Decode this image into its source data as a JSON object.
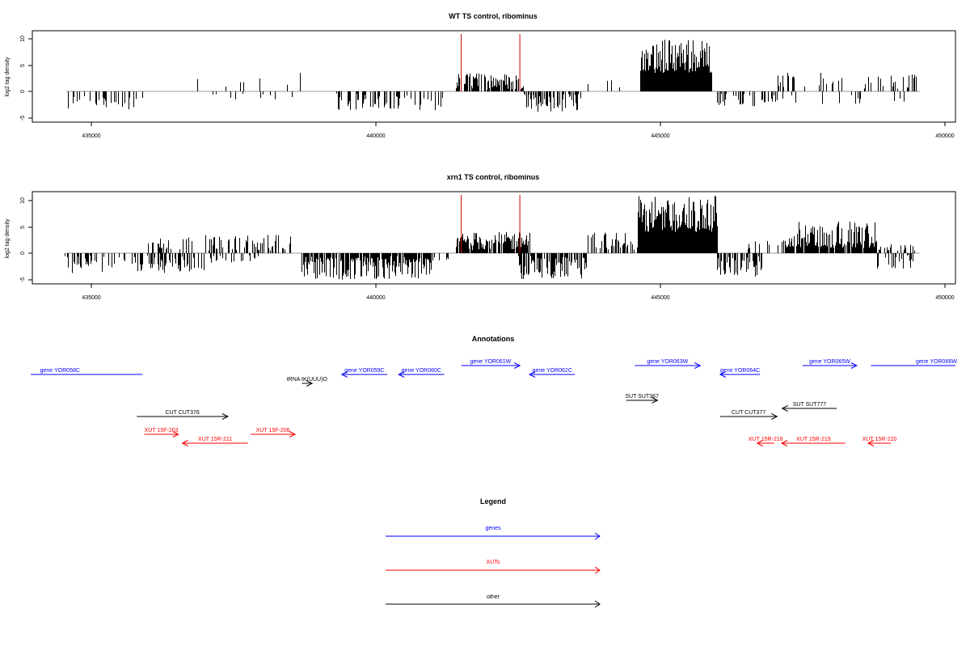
{
  "chart_data": [
    {
      "type": "bar",
      "title": "WT TS control, ribominus",
      "xlabel": "",
      "ylabel": "log2 tag density",
      "xlim": [
        434500,
        449500
      ],
      "ylim": [
        -5,
        10
      ],
      "x_ticks": [
        "435000",
        "440000",
        "445000",
        "450000"
      ],
      "y_ticks": [
        "-5",
        "0",
        "5",
        "10"
      ],
      "markers": [
        441500,
        442530
      ],
      "marker_color": "#cc0000",
      "regions": [
        {
          "x_start": 434500,
          "x_end": 436000,
          "sign": "neg",
          "min": 0.4,
          "max": 3.6,
          "density": 0.3
        },
        {
          "x_start": 436500,
          "x_end": 438800,
          "sign": "pos",
          "min": 0.5,
          "max": 3.5,
          "density": 0.05
        },
        {
          "x_start": 437000,
          "x_end": 439000,
          "sign": "neg",
          "min": 0.4,
          "max": 1.6,
          "density": 0.06
        },
        {
          "x_start": 439300,
          "x_end": 441200,
          "sign": "neg",
          "min": 0.4,
          "max": 3.6,
          "density": 0.4
        },
        {
          "x_start": 441400,
          "x_end": 442600,
          "sign": "pos",
          "min": 0.3,
          "max": 3.5,
          "density": 0.7
        },
        {
          "x_start": 442600,
          "x_end": 443600,
          "sign": "neg",
          "min": 0.4,
          "max": 4.0,
          "density": 0.5
        },
        {
          "x_start": 443600,
          "x_end": 444400,
          "sign": "pos",
          "min": 0.3,
          "max": 2.5,
          "density": 0.08
        },
        {
          "x_start": 444650,
          "x_end": 445900,
          "sign": "pos",
          "min": 3.5,
          "max": 10.0,
          "density": 1.0
        },
        {
          "x_start": 446000,
          "x_end": 447000,
          "sign": "neg",
          "min": 0.4,
          "max": 2.8,
          "density": 0.3
        },
        {
          "x_start": 447000,
          "x_end": 449500,
          "sign": "pos",
          "min": 0.5,
          "max": 3.5,
          "density": 0.25
        },
        {
          "x_start": 447000,
          "x_end": 449300,
          "sign": "neg",
          "min": 0.4,
          "max": 2.5,
          "density": 0.06
        }
      ]
    },
    {
      "type": "bar",
      "title": "xrn1 TS control, ribominus",
      "xlabel": "",
      "ylabel": "log2 tag density",
      "xlim": [
        434500,
        449500
      ],
      "ylim": [
        -5,
        10
      ],
      "x_ticks": [
        "435000",
        "440000",
        "445000",
        "450000"
      ],
      "y_ticks": [
        "-5",
        "0",
        "5",
        "10"
      ],
      "markers": [
        441500,
        442530
      ],
      "marker_color": "#cc0000",
      "regions": [
        {
          "x_start": 434500,
          "x_end": 437000,
          "sign": "neg",
          "min": 0.4,
          "max": 3.8,
          "density": 0.45
        },
        {
          "x_start": 436000,
          "x_end": 436800,
          "sign": "pos",
          "min": 0.4,
          "max": 3.0,
          "density": 0.25
        },
        {
          "x_start": 437000,
          "x_end": 438000,
          "sign": "neg",
          "min": 0.4,
          "max": 2.5,
          "density": 0.3
        },
        {
          "x_start": 437000,
          "x_end": 438500,
          "sign": "pos",
          "min": 0.5,
          "max": 3.5,
          "density": 0.4
        },
        {
          "x_start": 438700,
          "x_end": 441000,
          "sign": "neg",
          "min": 0.5,
          "max": 5.0,
          "density": 0.9
        },
        {
          "x_start": 441000,
          "x_end": 441300,
          "sign": "neg",
          "min": 0.3,
          "max": 1.5,
          "density": 0.2
        },
        {
          "x_start": 441400,
          "x_end": 442700,
          "sign": "pos",
          "min": 0.5,
          "max": 4.0,
          "density": 0.8
        },
        {
          "x_start": 442500,
          "x_end": 443700,
          "sign": "neg",
          "min": 0.5,
          "max": 5.0,
          "density": 0.7
        },
        {
          "x_start": 443700,
          "x_end": 444600,
          "sign": "pos",
          "min": 0.5,
          "max": 4.0,
          "density": 0.4
        },
        {
          "x_start": 444600,
          "x_end": 446000,
          "sign": "pos",
          "min": 4.0,
          "max": 11.0,
          "density": 1.0
        },
        {
          "x_start": 446000,
          "x_end": 446800,
          "sign": "neg",
          "min": 0.5,
          "max": 4.5,
          "density": 0.6
        },
        {
          "x_start": 446300,
          "x_end": 447200,
          "sign": "pos",
          "min": 0.3,
          "max": 2.5,
          "density": 0.2
        },
        {
          "x_start": 447200,
          "x_end": 448800,
          "sign": "pos",
          "min": 1.0,
          "max": 6.0,
          "density": 0.9
        },
        {
          "x_start": 448800,
          "x_end": 449500,
          "sign": "neg",
          "min": 0.3,
          "max": 3.0,
          "density": 0.3
        },
        {
          "x_start": 448800,
          "x_end": 449500,
          "sign": "pos",
          "min": 0.3,
          "max": 2.0,
          "density": 0.3
        }
      ]
    }
  ],
  "annotations": {
    "title": "Annotations",
    "features": [
      {
        "label": "gene YOR058C",
        "start": 433000,
        "end": 435900,
        "row": 0,
        "strand": "-",
        "color": "#0000ff"
      },
      {
        "label": "gene YOR059C",
        "start": 439400,
        "end": 440200,
        "row": 0,
        "strand": "-",
        "color": "#0000ff"
      },
      {
        "label": "gene YOR060C",
        "start": 440400,
        "end": 441200,
        "row": 0,
        "strand": "-",
        "color": "#0000ff"
      },
      {
        "label": "gene YOR061W",
        "start": 441500,
        "end": 442530,
        "row": 1,
        "strand": "+",
        "color": "#0000ff"
      },
      {
        "label": "gene YOR062C",
        "start": 442700,
        "end": 443500,
        "row": 0,
        "strand": "-",
        "color": "#0000ff"
      },
      {
        "label": "gene YOR063W",
        "start": 444550,
        "end": 445700,
        "row": 1,
        "strand": "+",
        "color": "#0000ff"
      },
      {
        "label": "gene YOR064C",
        "start": 446050,
        "end": 446750,
        "row": 0,
        "strand": "-",
        "color": "#0000ff"
      },
      {
        "label": "gene YOR065W",
        "start": 447500,
        "end": 448450,
        "row": 1,
        "strand": "+",
        "color": "#0000ff"
      },
      {
        "label": "gene YOR066W",
        "start": 448700,
        "end": 451000,
        "row": 1,
        "strand": "+",
        "color": "#0000ff"
      },
      {
        "label": "tRNA tK(UUU)O",
        "start": 438700,
        "end": 438880,
        "row": 2,
        "strand": "+",
        "color": "#000000"
      },
      {
        "label": "SUT SUT367",
        "start": 444400,
        "end": 444950,
        "row": 3,
        "strand": "+",
        "color": "#000000"
      },
      {
        "label": "SUT SUT777",
        "start": 447140,
        "end": 448100,
        "row": 4,
        "strand": "-",
        "color": "#000000"
      },
      {
        "label": "CUT CUT376",
        "start": 435800,
        "end": 437400,
        "row": 5,
        "strand": "+",
        "color": "#000000"
      },
      {
        "label": "CUT CUT377",
        "start": 446050,
        "end": 447050,
        "row": 5,
        "strand": "+",
        "color": "#000000"
      },
      {
        "label": "XUT 15F-203",
        "start": 435930,
        "end": 436530,
        "row": 6,
        "strand": "+",
        "color": "#ff0000"
      },
      {
        "label": "XUT 15F-206",
        "start": 437800,
        "end": 438580,
        "row": 6,
        "strand": "+",
        "color": "#ff0000"
      },
      {
        "label": "XUT 15R-211",
        "start": 436600,
        "end": 437750,
        "row": 7,
        "strand": "-",
        "color": "#ff0000"
      },
      {
        "label": "XUT 15R-218",
        "start": 446700,
        "end": 447000,
        "row": 7,
        "strand": "-",
        "color": "#ff0000"
      },
      {
        "label": "XUT 15R-219",
        "start": 447130,
        "end": 448250,
        "row": 7,
        "strand": "-",
        "color": "#ff0000"
      },
      {
        "label": "XUT 15R-220",
        "start": 448650,
        "end": 449050,
        "row": 7,
        "strand": "-",
        "color": "#ff0000"
      }
    ]
  },
  "legend": {
    "title": "Legend",
    "items": [
      {
        "label": "genes",
        "color": "#0000ff"
      },
      {
        "label": "XUTs",
        "color": "#ff0000"
      },
      {
        "label": "other",
        "color": "#000000"
      }
    ]
  }
}
